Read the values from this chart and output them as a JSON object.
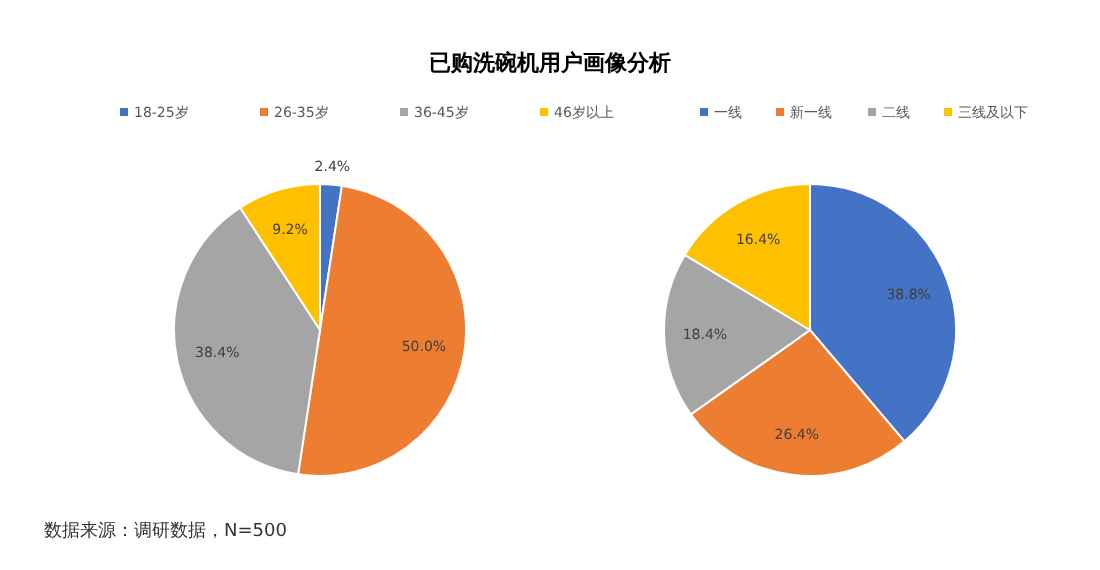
{
  "chart_data": [
    {
      "type": "pie",
      "title": "已购洗碗机用户画像分析",
      "categories": [
        "18-25岁",
        "26-35岁",
        "36-45岁",
        "46岁以上"
      ],
      "values": [
        2.4,
        50.0,
        38.4,
        9.2
      ],
      "value_labels": [
        "2.4%",
        "50.0%",
        "38.4%",
        "9.2%"
      ],
      "colors": [
        "#4472c4",
        "#ed7d31",
        "#a5a5a5",
        "#ffc000"
      ],
      "legend": "top",
      "annotations": [
        "数据来源：调研数据，N=500"
      ]
    },
    {
      "type": "pie",
      "categories": [
        "一线",
        "新一线",
        "二线",
        "三线及以下"
      ],
      "values": [
        38.8,
        26.4,
        18.4,
        16.4
      ],
      "value_labels": [
        "38.8%",
        "26.4%",
        "18.4%",
        "16.4%"
      ],
      "colors": [
        "#4472c4",
        "#ed7d31",
        "#a5a5a5",
        "#ffc000"
      ],
      "legend": "top"
    }
  ]
}
